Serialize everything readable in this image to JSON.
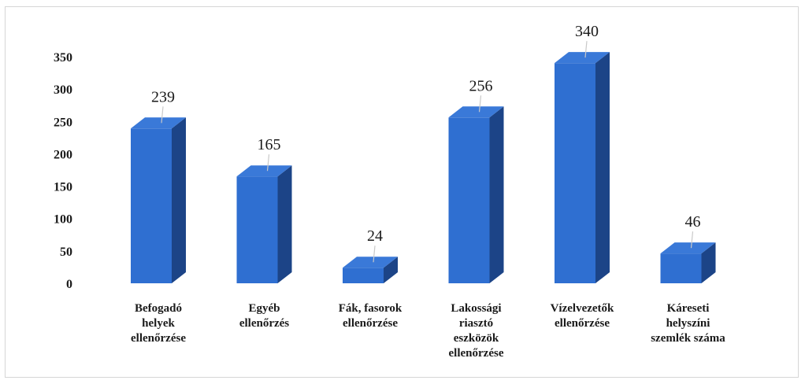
{
  "chart_data": {
    "type": "bar",
    "categories": [
      "Befogadó helyek ellenőrzése",
      "Egyéb ellenőrzés",
      "Fák, fasorok ellenőrzése",
      "Lakossági riasztó eszközök ellenőrzése",
      "Vízelvezetők ellenőrzése",
      "Káreseti helyszíni szemlék száma"
    ],
    "category_lines": [
      [
        "Befogadó",
        "helyek",
        "ellenőrzése"
      ],
      [
        "Egyéb",
        "ellenőrzés"
      ],
      [
        "Fák, fasorok",
        "ellenőrzése"
      ],
      [
        "Lakossági",
        "riasztó",
        "eszközök",
        "ellenőrzése"
      ],
      [
        "Vízelvezetők",
        "ellenőrzése"
      ],
      [
        "Káreseti",
        "helyszíni",
        "szemlék száma"
      ]
    ],
    "values": [
      239,
      165,
      24,
      256,
      340,
      46
    ],
    "data_labels": [
      "239",
      "165",
      "24",
      "256",
      "340",
      "46"
    ],
    "y_ticks": [
      "0",
      "50",
      "100",
      "150",
      "200",
      "250",
      "300",
      "350"
    ],
    "ylim": [
      0,
      350
    ],
    "title": "",
    "xlabel": "",
    "ylabel": "",
    "grid": false,
    "legend": "none",
    "style": "3d-column",
    "colors": {
      "front": "#2f6fd1",
      "side": "#1c4487",
      "top": "#3a79d8"
    }
  }
}
